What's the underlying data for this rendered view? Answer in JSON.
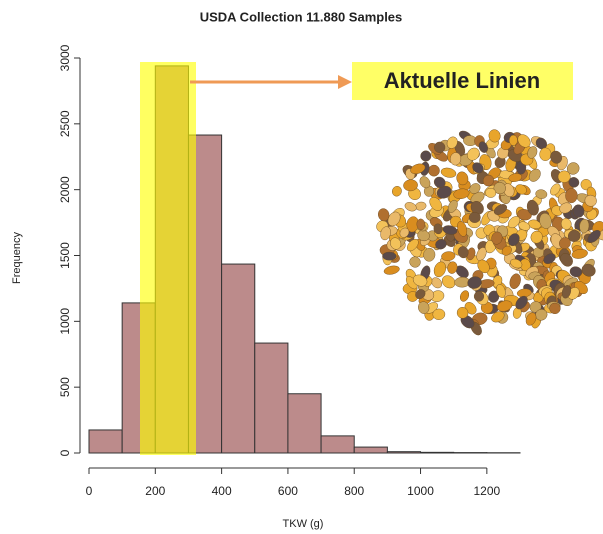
{
  "chart_data": {
    "type": "histogram",
    "title": "USDA Collection 11.880 Samples",
    "x_label": "TKW (g)",
    "y_label": "Frequency",
    "bins": [
      0,
      100,
      200,
      300,
      400,
      500,
      600,
      700,
      800,
      900,
      1000,
      1100,
      1200,
      1300
    ],
    "values": [
      175,
      1140,
      2940,
      2415,
      1435,
      835,
      450,
      130,
      45,
      10,
      5,
      3,
      2
    ],
    "color": "#bc8b8b",
    "xlim": [
      0,
      1300
    ],
    "xticks": [
      0,
      200,
      400,
      600,
      800,
      1000,
      1200
    ],
    "ylim": [
      0,
      3000
    ],
    "yticks": [
      0,
      500,
      1000,
      1500,
      2000,
      2500,
      3000
    ],
    "annotation": "Aktuelle Linien"
  }
}
